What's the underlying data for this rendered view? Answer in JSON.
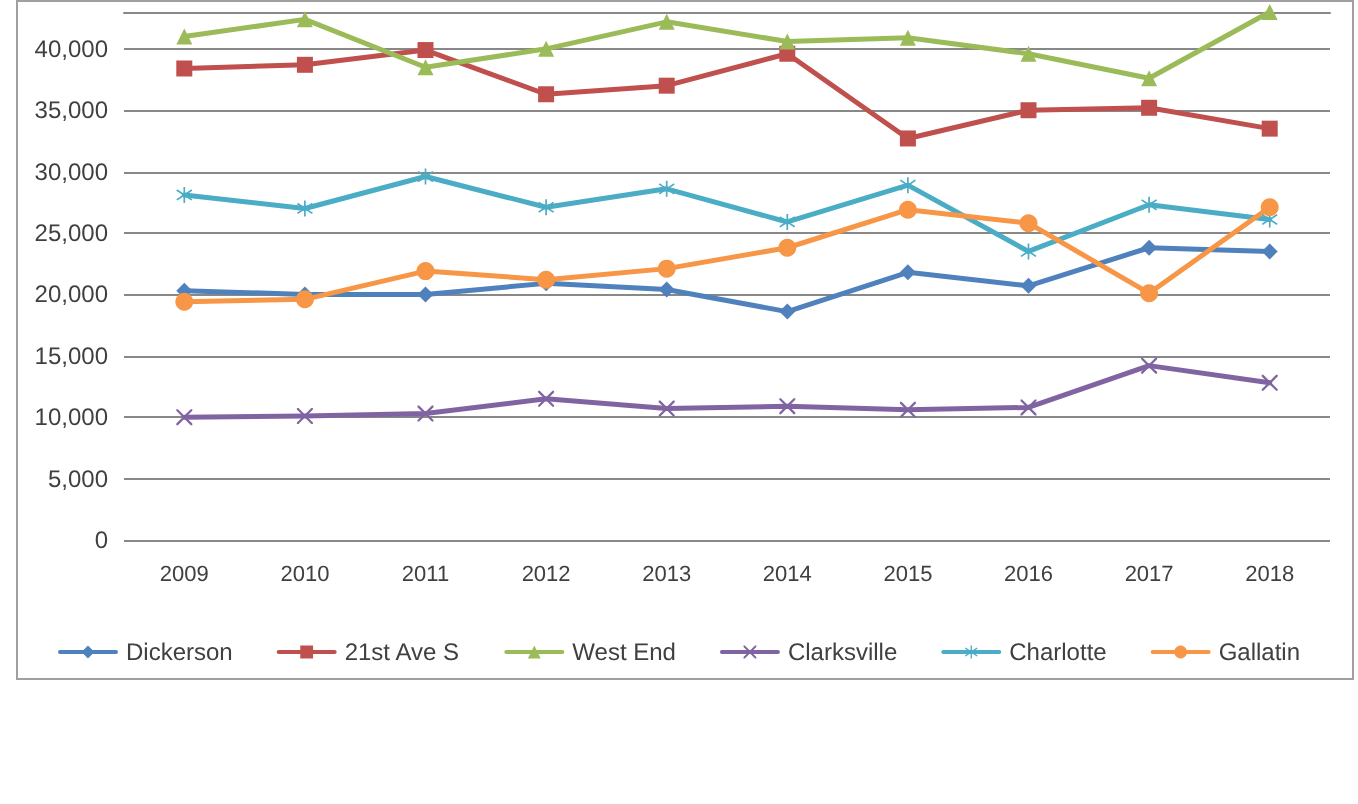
{
  "chart_data": {
    "type": "line",
    "categories": [
      "2009",
      "2010",
      "2011",
      "2012",
      "2013",
      "2014",
      "2015",
      "2016",
      "2017",
      "2018"
    ],
    "series": [
      {
        "name": "Dickerson",
        "color": "#4f81bd",
        "marker": "diamond",
        "values": [
          20300,
          20000,
          20000,
          20900,
          20400,
          18600,
          21800,
          20700,
          23800,
          23500
        ]
      },
      {
        "name": "21st Ave S",
        "color": "#c0504d",
        "marker": "square",
        "values": [
          38400,
          38700,
          39900,
          36300,
          37000,
          39600,
          32700,
          35000,
          35200,
          33500
        ]
      },
      {
        "name": "West End",
        "color": "#9bbb59",
        "marker": "triangle",
        "values": [
          41000,
          42400,
          38500,
          40000,
          42200,
          40600,
          40900,
          39600,
          37600,
          43000
        ]
      },
      {
        "name": "Clarksville",
        "color": "#8064a2",
        "marker": "cross",
        "values": [
          10000,
          10100,
          10300,
          11500,
          10700,
          10900,
          10600,
          10800,
          14200,
          12800
        ]
      },
      {
        "name": "Charlotte",
        "color": "#4bacc6",
        "marker": "star",
        "values": [
          28100,
          27000,
          29600,
          27100,
          28600,
          25900,
          28900,
          23500,
          27300,
          26100
        ]
      },
      {
        "name": "Gallatin",
        "color": "#f79646",
        "marker": "circle",
        "values": [
          19400,
          19600,
          21900,
          21200,
          22100,
          23800,
          26900,
          25800,
          20100,
          27100
        ]
      }
    ],
    "ylim": [
      0,
      43000
    ],
    "yticks": [
      0,
      {
        "value": 5000,
        "label": "5,000"
      },
      {
        "value": 10000,
        "label": "10,000"
      },
      {
        "value": 15000,
        "label": "15,000"
      },
      {
        "value": 20000,
        "label": "20,000"
      },
      {
        "value": 25000,
        "label": "25,000"
      },
      {
        "value": 30000,
        "label": "30,000"
      },
      {
        "value": 35000,
        "label": "35,000"
      },
      {
        "value": 40000,
        "label": "40,000"
      }
    ],
    "grid": "y",
    "legend": "bottom"
  }
}
